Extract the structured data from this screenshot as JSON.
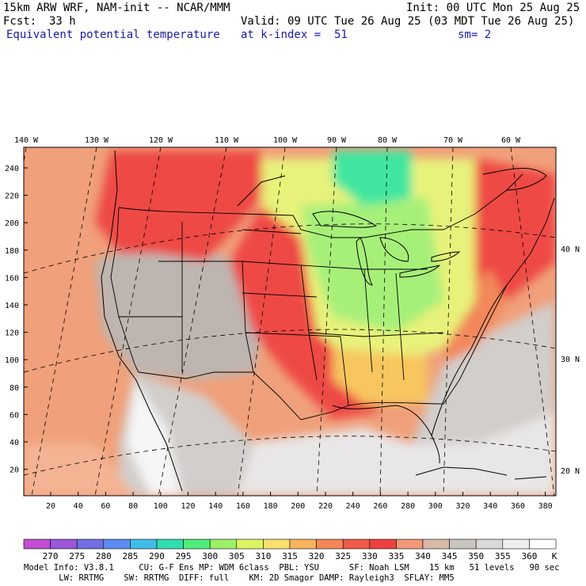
{
  "header": {
    "model_title": "15km ARW WRF, NAM-init -- NCAR/MMM",
    "init_time": "Init: 00 UTC Mon 25 Aug 25",
    "fcst_label": "Fcst:",
    "fcst_value": "33 h",
    "valid_time": "Valid: 09 UTC Tue 26 Aug 25 (03 MDT Tue 26 Aug 25)",
    "field_name": "Equivalent potential temperature",
    "level": "at k-index =  51",
    "smoothing": "sm= 2"
  },
  "map": {
    "longitude_labels": [
      "140 W",
      "130 W",
      "120 W",
      "110 W",
      "100 W",
      "90 W",
      "80 W",
      "70 W",
      "60 W"
    ],
    "latitude_labels": [
      "40 N",
      "30 N",
      "20 N"
    ],
    "y_grid_labels": [
      "240",
      "220",
      "200",
      "180",
      "160",
      "140",
      "120",
      "100",
      "80",
      "60",
      "40",
      "20"
    ],
    "x_grid_labels": [
      "20",
      "40",
      "60",
      "80",
      "100",
      "120",
      "140",
      "160",
      "180",
      "200",
      "220",
      "240",
      "260",
      "280",
      "300",
      "320",
      "340",
      "360",
      "380"
    ],
    "colors": {
      "cold": "#3fe6a0",
      "cool": "#a6f07a",
      "mild": "#e8f27a",
      "warm": "#f7c65f",
      "hot": "#f2875a",
      "hottest": "#ee4a45",
      "ocean_warm": "#f0a07a",
      "gray_dark": "#bdb5b0",
      "gray_mid": "#d2cecb",
      "gray_light": "#e8e6e6",
      "white": "#f6f6f6"
    }
  },
  "colorbar": {
    "labels": [
      "270",
      "275",
      "280",
      "285",
      "290",
      "295",
      "300",
      "305",
      "310",
      "315",
      "320",
      "325",
      "330",
      "335",
      "340",
      "345",
      "350",
      "355",
      "360",
      "K"
    ],
    "colors": [
      "#c050d0",
      "#9a58d8",
      "#7070e0",
      "#5c8cf0",
      "#40bce8",
      "#30dcb0",
      "#50ec7c",
      "#9cf064",
      "#dcf460",
      "#f7e070",
      "#f7b45c",
      "#f4875a",
      "#ee5a48",
      "#ec4040",
      "#f09878",
      "#d8b8a8",
      "#c8c4c0",
      "#dcdad8",
      "#eeeeee",
      "#ffffff"
    ]
  },
  "footer": {
    "line1": "Model Info: V3.8.1     CU: G-F Ens MP: WDM 6class  PBL: YSU      SF: Noah LSM    15 km   51 levels   90 sec",
    "line2": "       LW: RRTMG    SW: RRTMG  DIFF: full    KM: 2D Smagor DAMP: Rayleigh3  SFLAY: MM5"
  }
}
